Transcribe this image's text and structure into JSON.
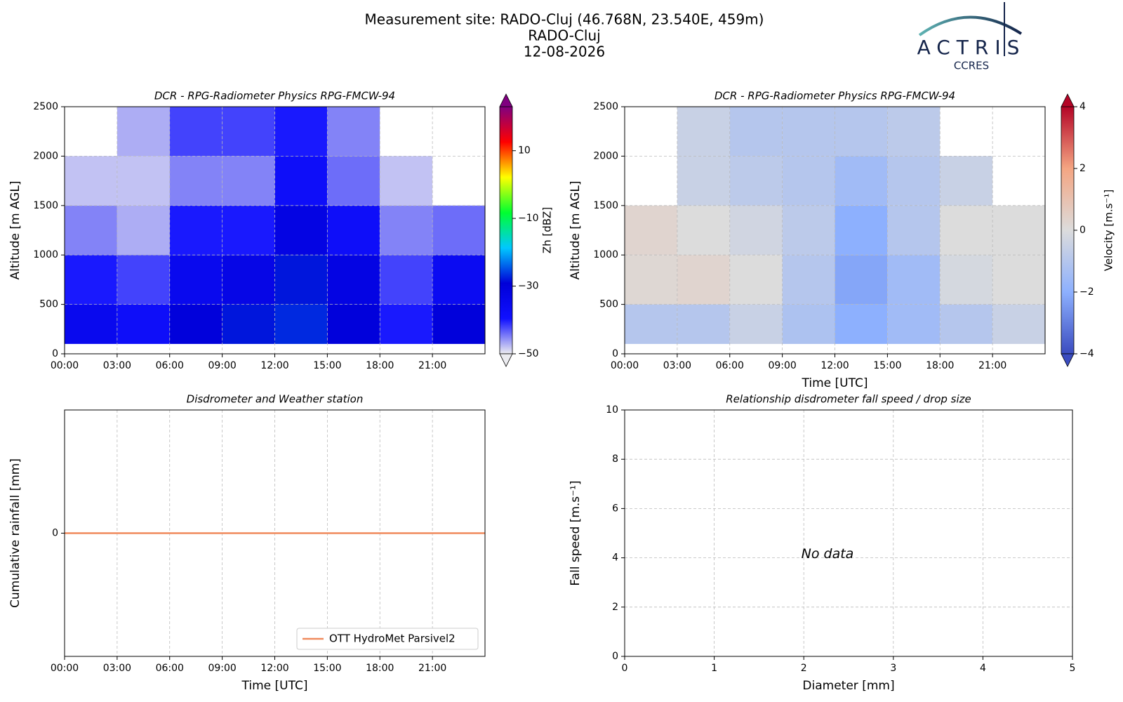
{
  "header": {
    "title": "Measurement site: RADO-Cluj (46.768N, 23.540E, 459m)",
    "site": "RADO-Cluj",
    "date": "12-08-2026"
  },
  "logo": {
    "name": "ACTRIS",
    "subtitle": "CCRES"
  },
  "chart_data": [
    {
      "type": "heatmap",
      "title": "DCR - RPG-Radiometer Physics RPG-FMCW-94",
      "ylabel": "Altitude [m AGL]",
      "x_edges": [
        0,
        3,
        6,
        9,
        12,
        15,
        18,
        21,
        24
      ],
      "y_edges": [
        100,
        500,
        1000,
        1500,
        2000,
        2500
      ],
      "values": [
        [
          -35,
          -38,
          -30,
          -28,
          -27,
          -30,
          -40,
          -30
        ],
        [
          -40,
          -42,
          -35,
          -33,
          -28,
          -32,
          -42,
          -36
        ],
        [
          -45,
          -47,
          -40,
          -40,
          -32,
          -38,
          -45,
          -44
        ],
        [
          -48,
          -48,
          -45,
          -45,
          -38,
          -44,
          -48,
          null
        ],
        [
          null,
          -47,
          -42,
          -42,
          -40,
          -45,
          null,
          null
        ]
      ],
      "xlim": [
        0,
        24
      ],
      "xticks": [
        {
          "value": 0,
          "label": "00:00"
        },
        {
          "value": 3,
          "label": "03:00"
        },
        {
          "value": 6,
          "label": "06:00"
        },
        {
          "value": 9,
          "label": "09:00"
        },
        {
          "value": 12,
          "label": "12:00"
        },
        {
          "value": 15,
          "label": "15:00"
        },
        {
          "value": 18,
          "label": "18:00"
        },
        {
          "value": 21,
          "label": "21:00"
        }
      ],
      "ylim": [
        0,
        2500
      ],
      "yticks": [
        0,
        500,
        1000,
        1500,
        2000,
        2500
      ],
      "grid": true,
      "clim": [
        -50,
        23
      ],
      "colormap": [
        "#ececf0",
        "#1010ff",
        "#0000d8",
        "#00c8ff",
        "#00ff30",
        "#ffff00",
        "#ff0000",
        "#800080"
      ],
      "colorbar": {
        "label": "Zh [dBZ]",
        "ticks": [
          {
            "value": -50,
            "label": "−50"
          },
          {
            "value": -30,
            "label": "−30"
          },
          {
            "value": -10,
            "label": "−10"
          },
          10
        ]
      }
    },
    {
      "type": "heatmap",
      "title": "DCR - RPG-Radiometer Physics RPG-FMCW-94",
      "ylabel": "Altitude [m AGL]",
      "xlabel": "Time [UTC]",
      "x_edges": [
        0,
        3,
        6,
        9,
        12,
        15,
        18,
        21,
        24
      ],
      "y_edges": [
        100,
        500,
        1000,
        1500,
        2000,
        2500
      ],
      "values": [
        [
          -1,
          -1,
          -0.5,
          -1.2,
          -2,
          -1.5,
          -1,
          -0.5
        ],
        [
          0.2,
          0.3,
          0,
          -1,
          -2.2,
          -1.5,
          -0.2,
          0
        ],
        [
          0.3,
          0,
          -0.3,
          -0.8,
          -2,
          -1,
          0,
          0
        ],
        [
          null,
          -0.5,
          -0.8,
          -1,
          -1.5,
          -1,
          -0.5,
          null
        ],
        [
          null,
          -0.5,
          -1,
          -1,
          -1,
          -0.8,
          null,
          null
        ]
      ],
      "xlim": [
        0,
        24
      ],
      "xticks": [
        {
          "value": 0,
          "label": "00:00"
        },
        {
          "value": 3,
          "label": "03:00"
        },
        {
          "value": 6,
          "label": "06:00"
        },
        {
          "value": 9,
          "label": "09:00"
        },
        {
          "value": 12,
          "label": "12:00"
        },
        {
          "value": 15,
          "label": "15:00"
        },
        {
          "value": 18,
          "label": "18:00"
        },
        {
          "value": 21,
          "label": "21:00"
        }
      ],
      "ylim": [
        0,
        2500
      ],
      "yticks": [
        0,
        500,
        1000,
        1500,
        2000,
        2500
      ],
      "grid": true,
      "clim": [
        -4,
        4
      ],
      "colormap": [
        "#3b4cc0",
        "#8db0fe",
        "#dcdcdc",
        "#f4a582",
        "#b40426"
      ],
      "colorbar": {
        "label": "Velocity [m.s⁻¹]",
        "ticks": [
          {
            "value": -4,
            "label": "−4"
          },
          {
            "value": -2,
            "label": "−2"
          },
          0,
          2,
          4
        ]
      }
    },
    {
      "type": "line",
      "title": "Disdrometer and Weather station",
      "ylabel": "Cumulative rainfall [mm]",
      "xlabel": "Time [UTC]",
      "series": [
        {
          "name": "OTT HydroMet Parsivel2",
          "color": "#f08a5d",
          "x": [
            0,
            24
          ],
          "values": [
            0,
            0
          ]
        }
      ],
      "xlim": [
        0,
        24
      ],
      "xticks": [
        {
          "value": 0,
          "label": "00:00"
        },
        {
          "value": 3,
          "label": "03:00"
        },
        {
          "value": 6,
          "label": "06:00"
        },
        {
          "value": 9,
          "label": "09:00"
        },
        {
          "value": 12,
          "label": "12:00"
        },
        {
          "value": 15,
          "label": "15:00"
        },
        {
          "value": 18,
          "label": "18:00"
        },
        {
          "value": 21,
          "label": "21:00"
        }
      ],
      "ylim": [
        -1,
        1
      ],
      "yticks": [
        0
      ],
      "grid": true,
      "legend": "lower right"
    },
    {
      "type": "scatter",
      "title": "Relationship disdrometer fall speed / drop size",
      "ylabel": "Fall speed [m.s⁻¹]",
      "xlabel": "Diameter [mm]",
      "x": [],
      "values": [],
      "annotation": "No data",
      "xlim": [
        0,
        5
      ],
      "xticks": [
        0,
        1,
        2,
        3,
        4,
        5
      ],
      "ylim": [
        0,
        10
      ],
      "yticks": [
        0,
        2,
        4,
        6,
        8,
        10
      ],
      "grid": true
    }
  ]
}
